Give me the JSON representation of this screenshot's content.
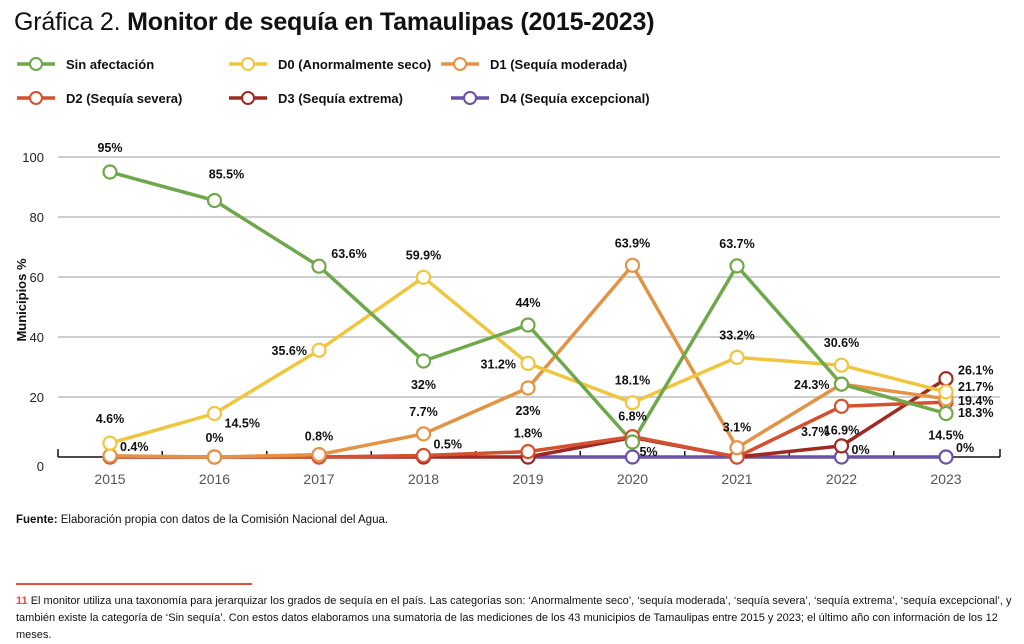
{
  "title": {
    "lead": "Gráfica 2.",
    "main": "Monitor de sequía en Tamaulipas (2015-2023)"
  },
  "source": {
    "label": "Fuente:",
    "text": "Elaboración propia con datos de la Comisión Nacional del Agua."
  },
  "footnote": {
    "number": "11",
    "text": "El monitor utiliza una taxonomía para jerarquizar los grados de sequía en el país. Las categorías son: ‘Anormalmente seco’, ‘sequía moderada’, ‘sequía severa’, ‘sequía extrema’, ‘sequía excepcional’, y también existe la categoría de ‘Sin sequía’. Con estos datos elaboramos una sumatoria de las mediciones de los 43 municipios de Tamaulipas entre 2015 y 2023; el último año con información de los 12 meses.",
    "accent_color": "#e0503a"
  },
  "chart_data": {
    "type": "line",
    "title": "Monitor de sequía en Tamaulipas (2015-2023)",
    "xlabel": "",
    "ylabel": "Municipios %",
    "ylim": [
      0,
      100
    ],
    "yticks": [
      "0",
      "20",
      "40",
      "60",
      "80",
      "100"
    ],
    "ytick_values": [
      0,
      20,
      40,
      60,
      80,
      100
    ],
    "grid": true,
    "legend_position": "top-left",
    "categories": [
      "2015",
      "2016",
      "2017",
      "2018",
      "2019",
      "2020",
      "2021",
      "2022",
      "2023"
    ],
    "series": [
      {
        "name": "Sin afectación",
        "color": "#6fa84a",
        "values": [
          95,
          85.5,
          63.6,
          32,
          44,
          5,
          63.7,
          24.3,
          14.5
        ],
        "labels": [
          "95%",
          "85.5%",
          "63.6%",
          "32%",
          "44%",
          "5%",
          "63.7%",
          null,
          "14.5%"
        ]
      },
      {
        "name": "D0 (Anormalmente seco)",
        "color": "#efc63f",
        "values": [
          4.6,
          14.5,
          35.6,
          59.9,
          31.2,
          18.1,
          33.2,
          30.6,
          21.7
        ],
        "labels": [
          "4.6%",
          "14.5%",
          "35.6%",
          "59.9%",
          "31.2%",
          "18.1%",
          "33.2%",
          "30.6%",
          "21.7%"
        ]
      },
      {
        "name": "D1 (Sequía moderada)",
        "color": "#e39345",
        "values": [
          0.4,
          0,
          0.8,
          7.7,
          23,
          63.9,
          3.1,
          24.3,
          19.4
        ],
        "labels": [
          "0.4%",
          "0%",
          "0.8%",
          "7.7%",
          "23%",
          "63.9%",
          "3.1%",
          "24.3%",
          "19.4%"
        ]
      },
      {
        "name": "D2 (Sequía severa)",
        "color": "#d4502e",
        "values": [
          0,
          0,
          0,
          0.5,
          1.8,
          6.8,
          0,
          16.9,
          18.3
        ],
        "labels": [
          null,
          null,
          null,
          "0.5%",
          "1.8%",
          "6.8%",
          null,
          "16.9%",
          "18.3%"
        ]
      },
      {
        "name": "D3 (Sequía extrema)",
        "color": "#9e2a22",
        "values": [
          0,
          0,
          0,
          0,
          0,
          6.5,
          0,
          3.7,
          26.1
        ],
        "labels": [
          null,
          null,
          null,
          null,
          null,
          null,
          null,
          "3.7%",
          "26.1%"
        ]
      },
      {
        "name": "D4 (Sequía excepcional)",
        "color": "#6a51a8",
        "values": [
          null,
          null,
          null,
          null,
          0,
          0,
          0,
          0,
          0
        ],
        "labels": [
          null,
          null,
          null,
          null,
          null,
          null,
          null,
          "0%",
          "0%"
        ]
      }
    ]
  }
}
